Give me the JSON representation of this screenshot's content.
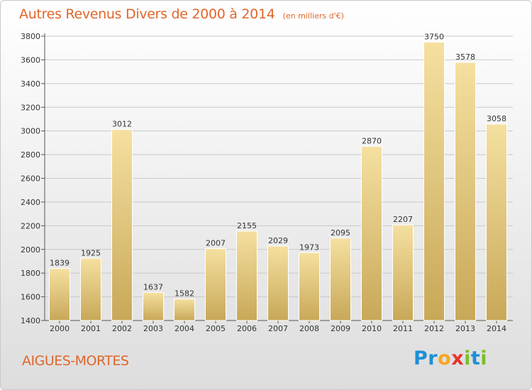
{
  "header": {
    "title": "Autres Revenus Divers de 2000 à 2014",
    "unit": "(en milliers d'€)"
  },
  "footer": {
    "place": "AIGUES-MORTES",
    "logo_text": "Proxiti",
    "logo_letters": [
      {
        "char": "P",
        "color": "#1e8fd6"
      },
      {
        "char": "r",
        "color": "#1e8fd6"
      },
      {
        "char": "o",
        "color": "#f5a623"
      },
      {
        "char": "x",
        "color": "#e8332a"
      },
      {
        "char": "i",
        "color": "#7bbf2a"
      },
      {
        "char": "t",
        "color": "#1e8fd6"
      },
      {
        "char": "i",
        "color": "#7bbf2a"
      }
    ]
  },
  "colors": {
    "accent": "#e0662a",
    "bar_top": "#f5e0a0",
    "bar_bottom": "#c8a858",
    "grid": "#c9c9c9"
  },
  "chart_data": {
    "type": "bar",
    "categories": [
      "2000",
      "2001",
      "2002",
      "2003",
      "2004",
      "2005",
      "2006",
      "2007",
      "2008",
      "2009",
      "2010",
      "2011",
      "2012",
      "2013",
      "2014"
    ],
    "values": [
      1839,
      1925,
      3012,
      1637,
      1582,
      2007,
      2155,
      2029,
      1973,
      2095,
      2870,
      2207,
      3750,
      3578,
      3058
    ],
    "ylim": [
      1400,
      3800
    ],
    "yticks": [
      1400,
      1600,
      1800,
      2000,
      2200,
      2400,
      2600,
      2800,
      3000,
      3200,
      3400,
      3600,
      3800
    ],
    "grid": true,
    "xlabel": "",
    "ylabel": ""
  }
}
